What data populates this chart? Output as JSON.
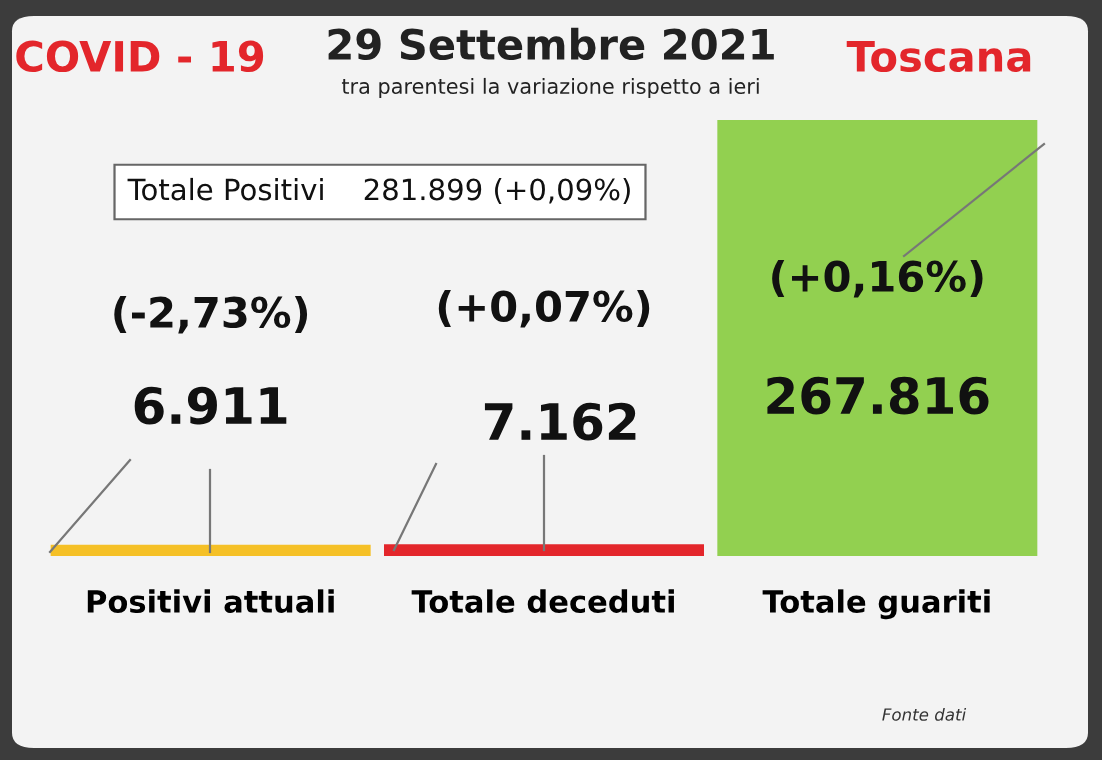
{
  "chart_data": {
    "type": "bar",
    "title": "29 Settembre 2021",
    "subtitle": "tra parentesi la variazione rispetto a ieri",
    "categories": [
      "Positivi attuali",
      "Totale deceduti",
      "Totale guariti"
    ],
    "values": [
      6911,
      7162,
      267816
    ],
    "colors": [
      "#f5c026",
      "#e3262b",
      "#92d050"
    ],
    "value_labels": [
      "6.911",
      "7.162",
      "267.816"
    ],
    "ylim": [
      0,
      267816
    ],
    "grid": false,
    "legend": false,
    "annotations": [
      "COVID - 19",
      "Toscana",
      "Totale Positivi    281.899 (+0,09%)",
      "Fonte dati",
      "(-2,73%)",
      "(+0,07%)",
      "(+0,16%)"
    ]
  }
}
